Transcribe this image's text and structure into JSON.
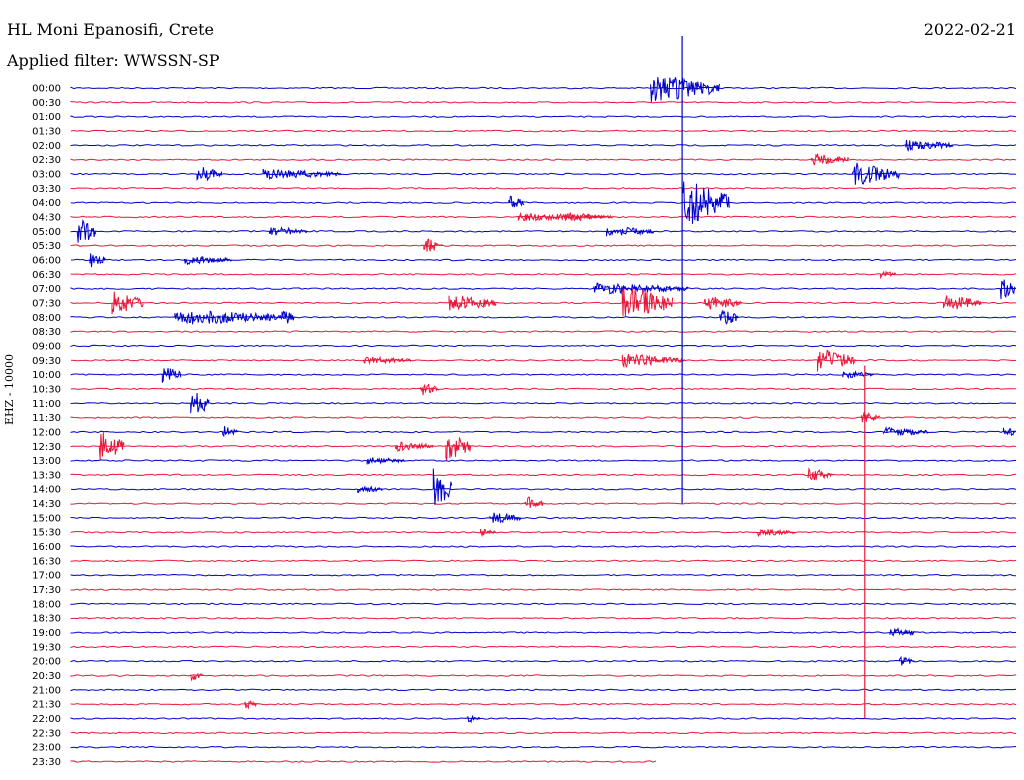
{
  "header": {
    "station": "HL Moni Epanosifi, Crete",
    "date": "2022-02-21",
    "filter": "Applied filter: WWSSN-SP"
  },
  "chart_data": {
    "type": "line",
    "title": "HL Moni Epanosifi, Crete",
    "ylabel": "EHZ - 10000",
    "row_labels": [
      "00:00",
      "00:30",
      "01:00",
      "01:30",
      "02:00",
      "02:30",
      "03:00",
      "03:30",
      "04:00",
      "04:30",
      "05:00",
      "05:30",
      "06:00",
      "06:30",
      "07:00",
      "07:30",
      "08:00",
      "08:30",
      "09:00",
      "09:30",
      "10:00",
      "10:30",
      "11:00",
      "11:30",
      "12:00",
      "12:30",
      "13:00",
      "13:30",
      "14:00",
      "14:30",
      "15:00",
      "15:30",
      "16:00",
      "16:30",
      "17:00",
      "17:30",
      "18:00",
      "18:30",
      "19:00",
      "19:30",
      "20:00",
      "20:30",
      "21:00",
      "21:30",
      "22:00",
      "22:30",
      "23:00",
      "23:30"
    ],
    "row_minutes": 30,
    "colors": [
      "#0000cc",
      "#e8173a"
    ],
    "last_row_fraction": 0.62,
    "events": [
      {
        "row": 0,
        "minute": 18.4,
        "amp": 15,
        "dur": 2.2,
        "kind": "tall"
      },
      {
        "row": 4,
        "minute": 26.5,
        "amp": 6,
        "dur": 1.5,
        "kind": "burst"
      },
      {
        "row": 5,
        "minute": 23.5,
        "amp": 7,
        "dur": 1.2,
        "kind": "burst"
      },
      {
        "row": 6,
        "minute": 4.0,
        "amp": 9,
        "dur": 0.8,
        "kind": "burst"
      },
      {
        "row": 6,
        "minute": 6.1,
        "amp": 5,
        "dur": 2.5,
        "kind": "burst"
      },
      {
        "row": 6,
        "minute": 24.8,
        "amp": 12,
        "dur": 1.5,
        "kind": "burst"
      },
      {
        "row": 8,
        "minute": 13.9,
        "amp": 7,
        "dur": 0.5,
        "kind": "burst"
      },
      {
        "row": 8,
        "minute": 19.4,
        "amp": 26,
        "dur": 1.5,
        "kind": "burst"
      },
      {
        "row": 9,
        "minute": 14.2,
        "amp": 4,
        "dur": 3.0,
        "kind": "burst"
      },
      {
        "row": 9,
        "minute": 15.7,
        "amp": 5,
        "dur": 1.2,
        "kind": "burst"
      },
      {
        "row": 10,
        "minute": 0.2,
        "amp": 16,
        "dur": 0.6,
        "kind": "burst"
      },
      {
        "row": 10,
        "minute": 6.3,
        "amp": 5,
        "dur": 1.2,
        "kind": "burst"
      },
      {
        "row": 10,
        "minute": 17.0,
        "amp": 6,
        "dur": 1.5,
        "kind": "burst"
      },
      {
        "row": 12,
        "minute": 0.6,
        "amp": 8,
        "dur": 0.5,
        "kind": "burst"
      },
      {
        "row": 12,
        "minute": 3.6,
        "amp": 5,
        "dur": 1.5,
        "kind": "burst"
      },
      {
        "row": 14,
        "minute": 16.6,
        "amp": 6,
        "dur": 3.0,
        "kind": "burst"
      },
      {
        "row": 14,
        "minute": 29.5,
        "amp": 12,
        "dur": 1.0,
        "kind": "burst"
      },
      {
        "row": 15,
        "minute": 1.3,
        "amp": 12,
        "dur": 1.0,
        "kind": "burst"
      },
      {
        "row": 15,
        "minute": 12.0,
        "amp": 9,
        "dur": 1.5,
        "kind": "burst"
      },
      {
        "row": 15,
        "minute": 17.5,
        "amp": 18,
        "dur": 1.6,
        "kind": "burst"
      },
      {
        "row": 15,
        "minute": 20.1,
        "amp": 8,
        "dur": 1.2,
        "kind": "burst"
      },
      {
        "row": 15,
        "minute": 27.7,
        "amp": 9,
        "dur": 1.2,
        "kind": "burst"
      },
      {
        "row": 16,
        "minute": 3.3,
        "amp": 8,
        "dur": 3.5,
        "kind": "burst"
      },
      {
        "row": 16,
        "minute": 6.7,
        "amp": 9,
        "dur": 0.4,
        "kind": "burst"
      },
      {
        "row": 16,
        "minute": 20.6,
        "amp": 10,
        "dur": 0.6,
        "kind": "burst"
      },
      {
        "row": 19,
        "minute": 9.3,
        "amp": 4,
        "dur": 1.5,
        "kind": "burst"
      },
      {
        "row": 19,
        "minute": 17.5,
        "amp": 7,
        "dur": 2.0,
        "kind": "burst"
      },
      {
        "row": 19,
        "minute": 23.7,
        "amp": 12,
        "dur": 1.2,
        "kind": "burst"
      },
      {
        "row": 20,
        "minute": 2.9,
        "amp": 9,
        "dur": 0.6,
        "kind": "burst"
      },
      {
        "row": 20,
        "minute": 24.5,
        "amp": 4,
        "dur": 1.0,
        "kind": "burst"
      },
      {
        "row": 21,
        "minute": 11.1,
        "amp": 7,
        "dur": 0.6,
        "kind": "burst"
      },
      {
        "row": 22,
        "minute": 3.8,
        "amp": 15,
        "dur": 0.6,
        "kind": "burst"
      },
      {
        "row": 23,
        "minute": 25.1,
        "amp": 6,
        "dur": 0.6,
        "kind": "burst"
      },
      {
        "row": 24,
        "minute": 4.8,
        "amp": 8,
        "dur": 0.5,
        "kind": "burst"
      },
      {
        "row": 24,
        "minute": 25.8,
        "amp": 5,
        "dur": 1.4,
        "kind": "burst"
      },
      {
        "row": 24,
        "minute": 29.6,
        "amp": 6,
        "dur": 0.8,
        "kind": "burst"
      },
      {
        "row": 25,
        "minute": 0.9,
        "amp": 16,
        "dur": 0.8,
        "kind": "burst"
      },
      {
        "row": 25,
        "minute": 10.3,
        "amp": 5,
        "dur": 1.2,
        "kind": "burst"
      },
      {
        "row": 25,
        "minute": 11.9,
        "amp": 16,
        "dur": 0.8,
        "kind": "burst"
      },
      {
        "row": 26,
        "minute": 9.4,
        "amp": 4,
        "dur": 1.2,
        "kind": "burst"
      },
      {
        "row": 27,
        "minute": 23.4,
        "amp": 7,
        "dur": 0.8,
        "kind": "burst"
      },
      {
        "row": 28,
        "minute": 11.5,
        "amp": 22,
        "dur": 0.6,
        "kind": "burst"
      },
      {
        "row": 28,
        "minute": 9.1,
        "amp": 4,
        "dur": 0.8,
        "kind": "burst"
      },
      {
        "row": 29,
        "minute": 14.4,
        "amp": 8,
        "dur": 0.6,
        "kind": "burst"
      },
      {
        "row": 30,
        "minute": 13.3,
        "amp": 6,
        "dur": 1.0,
        "kind": "burst"
      },
      {
        "row": 31,
        "minute": 13.0,
        "amp": 5,
        "dur": 0.5,
        "kind": "burst"
      },
      {
        "row": 31,
        "minute": 21.8,
        "amp": 4,
        "dur": 1.2,
        "kind": "burst"
      },
      {
        "row": 38,
        "minute": 26.0,
        "amp": 6,
        "dur": 0.8,
        "kind": "burst"
      },
      {
        "row": 40,
        "minute": 26.3,
        "amp": 5,
        "dur": 0.5,
        "kind": "burst"
      },
      {
        "row": 41,
        "minute": 3.8,
        "amp": 6,
        "dur": 0.4,
        "kind": "burst"
      },
      {
        "row": 43,
        "minute": 5.5,
        "amp": 5,
        "dur": 0.4,
        "kind": "burst"
      },
      {
        "row": 44,
        "minute": 12.6,
        "amp": 5,
        "dur": 0.4,
        "kind": "burst"
      },
      {
        "row": 11,
        "minute": 11.2,
        "amp": 8,
        "dur": 0.6,
        "kind": "burst"
      },
      {
        "row": 13,
        "minute": 25.7,
        "amp": 4,
        "dur": 0.5,
        "kind": "burst"
      }
    ],
    "big_events": [
      {
        "row_start": 0,
        "row_end": 29,
        "minute": 19.4,
        "color": "#0000cc"
      },
      {
        "row_start": 23,
        "row_end": 44,
        "minute": 25.2,
        "color": "#e8173a"
      }
    ]
  }
}
